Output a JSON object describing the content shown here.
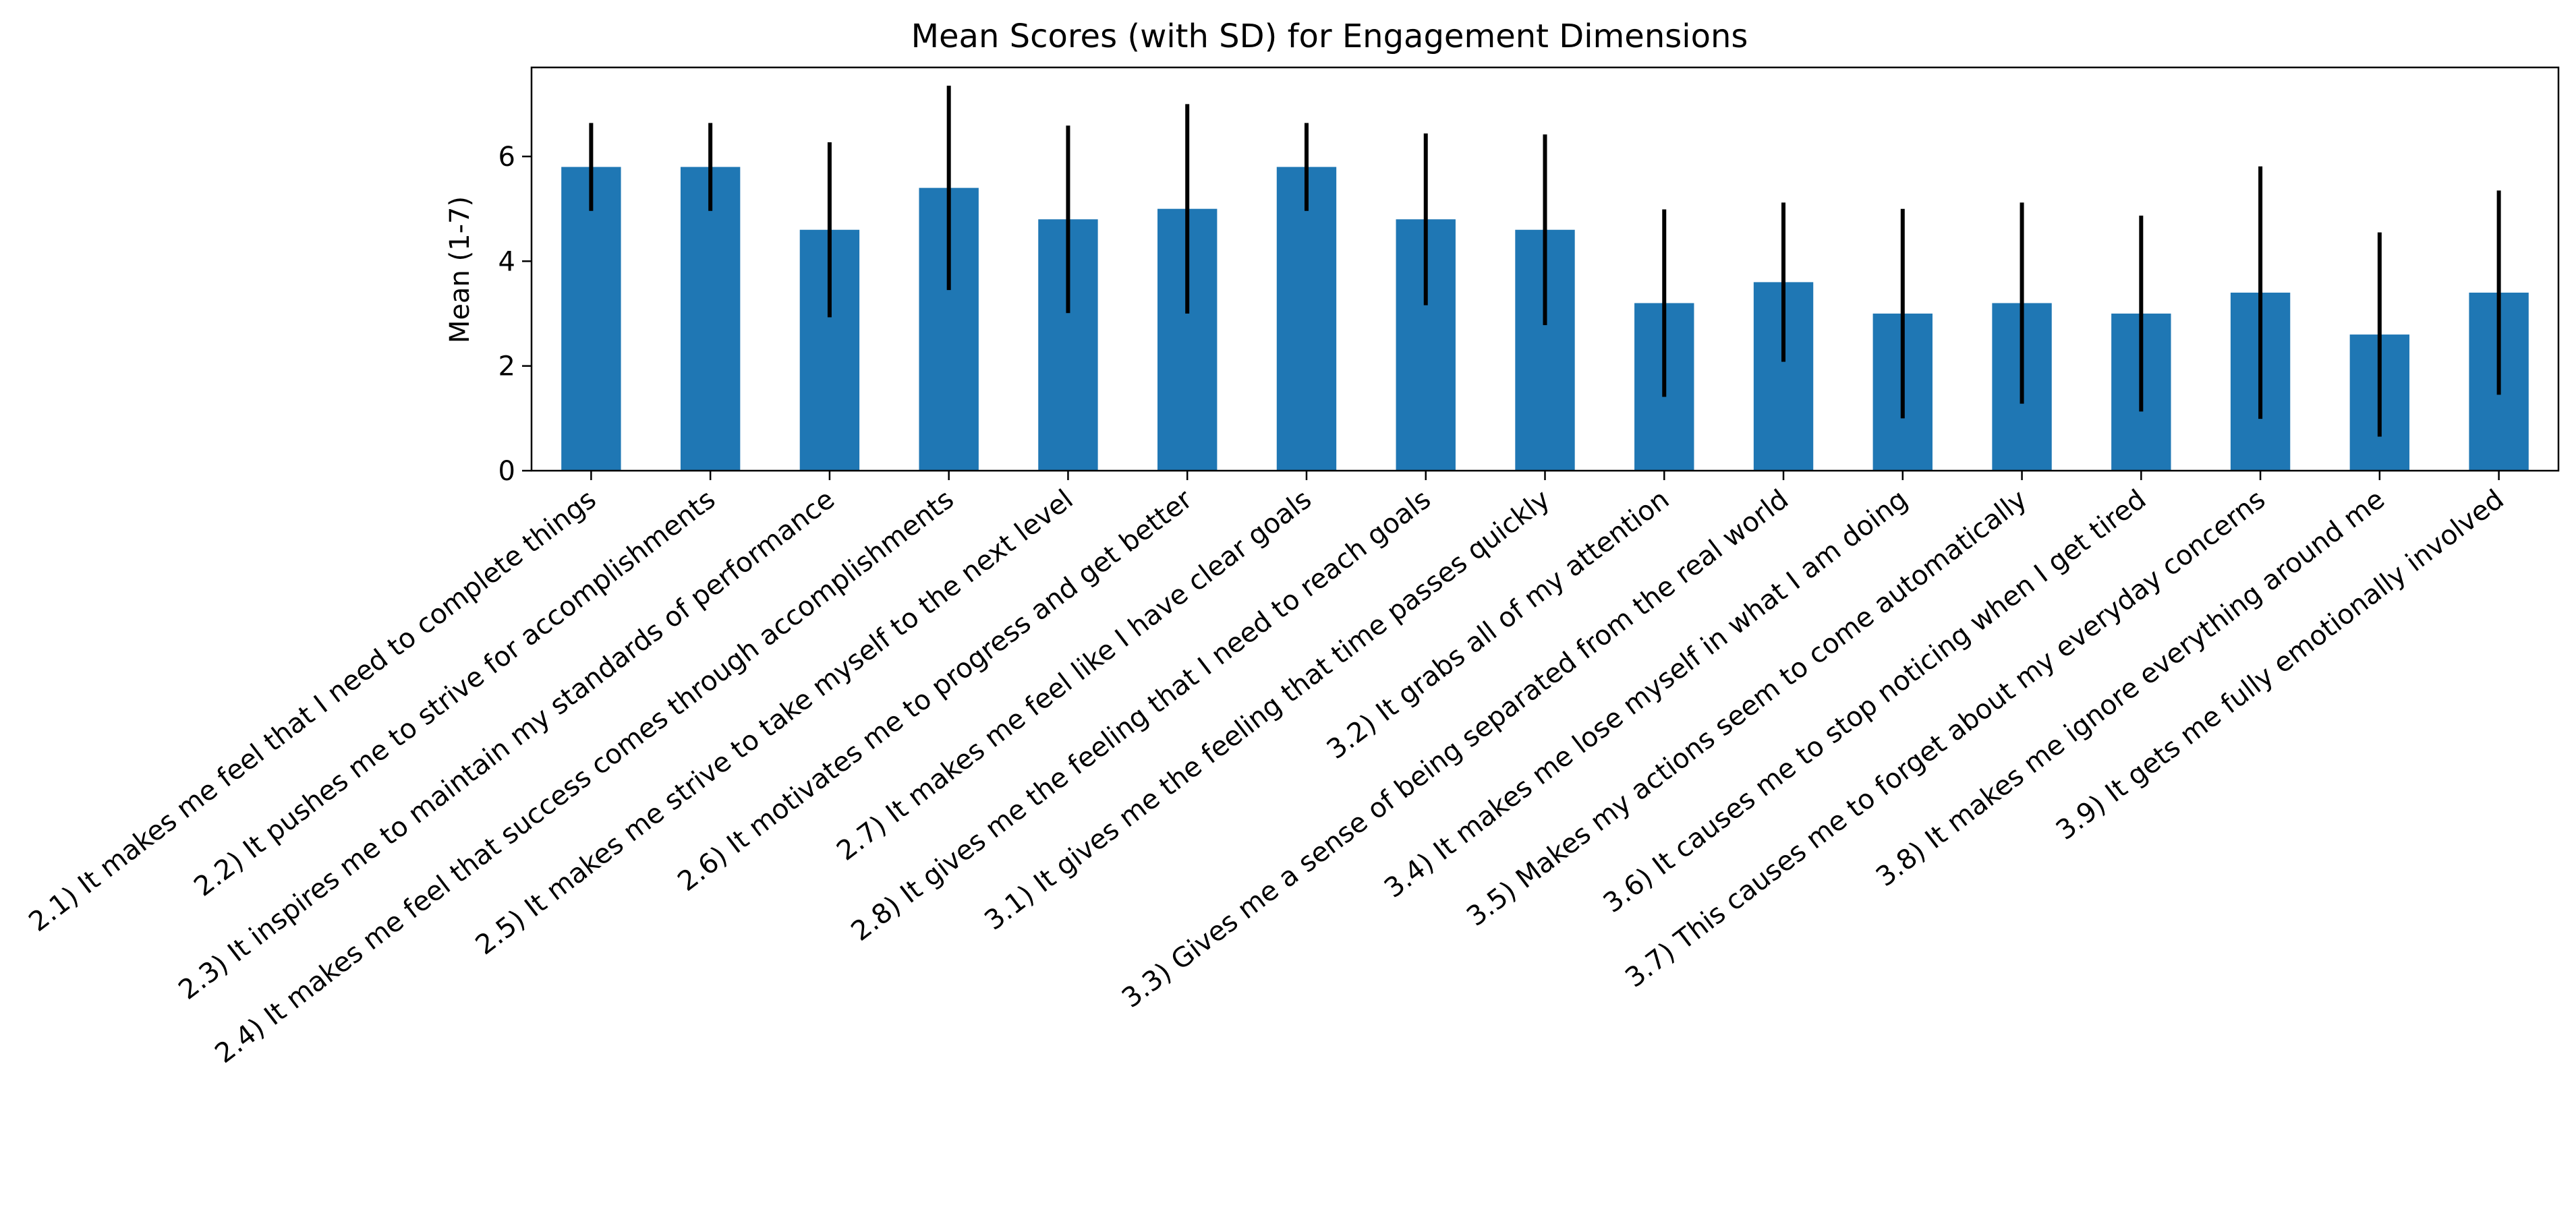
{
  "chart_data": {
    "type": "bar",
    "title": "Mean Scores (with SD) for Engagement Dimensions",
    "xlabel": "",
    "ylabel": "Mean (1-7)",
    "ylim": [
      0,
      7.7
    ],
    "yticks": [
      0,
      2,
      4,
      6
    ],
    "grid": false,
    "bar_color": "#1f77b4",
    "error_color": "#000000",
    "categories": [
      "2.1) It makes me feel that I need to complete things",
      "2.2) It pushes me to strive for accomplishments",
      "2.3) It inspires me to maintain my standards of performance",
      "2.4) It makes me feel that success comes through accomplishments",
      "2.5) It makes me strive to take myself to the next level",
      "2.6) It motivates me to progress and get better",
      "2.7) It makes me feel like I have clear goals",
      "2.8) It gives me the feeling that I need to reach goals",
      "3.1) It gives me the feeling that time passes quickly",
      "3.2) It grabs all of my attention",
      "3.3) Gives me a sense of being separated from the real world",
      "3.4) It makes me lose myself in what I am doing",
      "3.5) Makes my actions seem to come automatically",
      "3.6) It causes me to stop noticing when I get tired",
      "3.7) This causes me to forget about my everyday concerns",
      "3.8) It makes me ignore everything around me",
      "3.9) It gets me fully emotionally involved"
    ],
    "values": [
      5.8,
      5.8,
      4.6,
      5.4,
      4.8,
      5.0,
      5.8,
      4.8,
      4.6,
      3.2,
      3.6,
      3.0,
      3.2,
      3.0,
      3.4,
      2.6,
      3.4
    ],
    "errors": [
      0.84,
      0.84,
      1.67,
      1.95,
      1.79,
      2.0,
      0.84,
      1.64,
      1.82,
      1.79,
      1.52,
      2.0,
      1.92,
      1.87,
      2.41,
      1.95,
      1.95
    ]
  }
}
